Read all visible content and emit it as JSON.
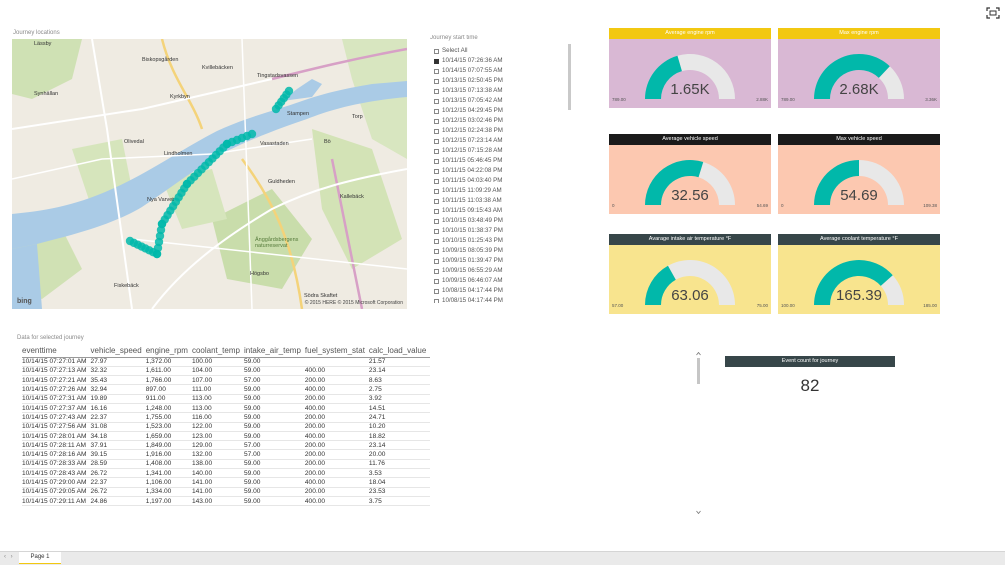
{
  "map": {
    "title": "Journey locations",
    "labels": [
      {
        "text": "Lässby",
        "name": "label-lassby"
      },
      {
        "text": "Biskopsgården",
        "name": "label-biskopsgarden"
      },
      {
        "text": "Kvillebäcken",
        "name": "label-kvillebacken"
      },
      {
        "text": "Tingstadsvassen",
        "name": "label-tingstadsvassen"
      },
      {
        "text": "Synhällan",
        "name": "label-synhallan"
      },
      {
        "text": "Kyrkbyn",
        "name": "label-kyrkbyn"
      },
      {
        "text": "Stampen",
        "name": "label-stampen"
      },
      {
        "text": "Torp",
        "name": "label-torp"
      },
      {
        "text": "Olivedal",
        "name": "label-olivedal"
      },
      {
        "text": "Vasastaden",
        "name": "label-vasastaden"
      },
      {
        "text": "Bö",
        "name": "label-bo"
      },
      {
        "text": "Lindholmen",
        "name": "label-lindholmen"
      },
      {
        "text": "Nya Varvet",
        "name": "label-nya-varvet"
      },
      {
        "text": "Guldheden",
        "name": "label-guldheden"
      },
      {
        "text": "Kallebäck",
        "name": "label-kalleback"
      },
      {
        "text": "Änggårdsbergens naturreservat",
        "name": "label-anggardsbergen"
      },
      {
        "text": "Högsbo",
        "name": "label-hogsbo"
      },
      {
        "text": "Fiskebäck",
        "name": "label-fiskeback"
      },
      {
        "text": "Södra Skaftet",
        "name": "label-sodra"
      }
    ],
    "bing": "bing",
    "copyright": "© 2015 HERE   © 2015 Microsoft Corporation"
  },
  "slicer": {
    "title": "Journey start time",
    "items": [
      {
        "label": "Select All",
        "checked": false
      },
      {
        "label": "10/14/15 07:26:36 AM",
        "checked": true
      },
      {
        "label": "10/14/15 07:07:55 AM",
        "checked": false
      },
      {
        "label": "10/13/15 02:50:45 PM",
        "checked": false
      },
      {
        "label": "10/13/15 07:13:38 AM",
        "checked": false
      },
      {
        "label": "10/13/15 07:05:42 AM",
        "checked": false
      },
      {
        "label": "10/12/15 04:29:45 PM",
        "checked": false
      },
      {
        "label": "10/12/15 03:02:46 PM",
        "checked": false
      },
      {
        "label": "10/12/15 02:24:38 PM",
        "checked": false
      },
      {
        "label": "10/12/15 07:23:14 AM",
        "checked": false
      },
      {
        "label": "10/12/15 07:15:28 AM",
        "checked": false
      },
      {
        "label": "10/11/15 05:46:45 PM",
        "checked": false
      },
      {
        "label": "10/11/15 04:22:08 PM",
        "checked": false
      },
      {
        "label": "10/11/15 04:03:40 PM",
        "checked": false
      },
      {
        "label": "10/11/15 11:09:29 AM",
        "checked": false
      },
      {
        "label": "10/11/15 11:03:38 AM",
        "checked": false
      },
      {
        "label": "10/11/15 09:15:43 AM",
        "checked": false
      },
      {
        "label": "10/10/15 03:48:49 PM",
        "checked": false
      },
      {
        "label": "10/10/15 01:38:37 PM",
        "checked": false
      },
      {
        "label": "10/10/15 01:25:43 PM",
        "checked": false
      },
      {
        "label": "10/09/15 08:05:39 PM",
        "checked": false
      },
      {
        "label": "10/09/15 01:39:47 PM",
        "checked": false
      },
      {
        "label": "10/09/15 06:55:29 AM",
        "checked": false
      },
      {
        "label": "10/09/15 06:46:07 AM",
        "checked": false
      },
      {
        "label": "10/08/15 04:17:44 PM",
        "checked": false
      },
      {
        "label": "10/08/15 04:17:44 PM",
        "checked": false
      }
    ]
  },
  "colors": {
    "teal": "#01b8aa",
    "gauge_track": "#e8e8e8",
    "head_yellow": "#f2c811",
    "head_black": "#1a1a1a",
    "head_dark": "#374649",
    "bg_lilac": "#d9b8d4",
    "bg_peach": "#fcc8b0",
    "bg_yellow": "#f8e48e"
  },
  "gauges": [
    {
      "title": "Average engine rpm",
      "value_label": "1.65K",
      "min": "789.00",
      "max": "2.88K",
      "fraction": 0.41,
      "head_color": "#f2c811",
      "bg_color": "#d9b8d4"
    },
    {
      "title": "Max engine rpm",
      "value_label": "2.68K",
      "min": "789.00",
      "max": "3.36K",
      "fraction": 0.74,
      "head_color": "#f2c811",
      "bg_color": "#d9b8d4"
    },
    {
      "title": "Average vehicle speed",
      "value_label": "32.56",
      "min": "0",
      "max": "54.69",
      "fraction": 0.595,
      "head_color": "#1a1a1a",
      "bg_color": "#fcc8b0"
    },
    {
      "title": "Max vehicle speed",
      "value_label": "54.69",
      "min": "0",
      "max": "109.38",
      "fraction": 0.5,
      "head_color": "#1a1a1a",
      "bg_color": "#fcc8b0"
    },
    {
      "title": "Avarage intake air temperature °F",
      "value_label": "63.06",
      "min": "57.00",
      "max": "75.00",
      "fraction": 0.337,
      "head_color": "#374649",
      "bg_color": "#f8e48e"
    },
    {
      "title": "Average coolant temperature °F",
      "value_label": "165.39",
      "min": "100.00",
      "max": "185.00",
      "fraction": 0.77,
      "head_color": "#374649",
      "bg_color": "#f8e48e"
    }
  ],
  "table": {
    "title": "Data for selected journey",
    "columns": [
      "eventtime",
      "vehicle_speed",
      "engine_rpm",
      "coolant_temp",
      "intake_air_temp",
      "fuel_system_stat",
      "calc_load_value"
    ],
    "rows": [
      [
        "10/14/15 07:27:01 AM",
        "27.97",
        "1,372.00",
        "100.00",
        "59.00",
        "",
        "21.57"
      ],
      [
        "10/14/15 07:27:13 AM",
        "32.32",
        "1,611.00",
        "104.00",
        "59.00",
        "400.00",
        "23.14"
      ],
      [
        "10/14/15 07:27:21 AM",
        "35.43",
        "1,766.00",
        "107.00",
        "57.00",
        "200.00",
        "8.63"
      ],
      [
        "10/14/15 07:27:26 AM",
        "32.94",
        "897.00",
        "111.00",
        "59.00",
        "400.00",
        "2.75"
      ],
      [
        "10/14/15 07:27:31 AM",
        "19.89",
        "911.00",
        "113.00",
        "59.00",
        "200.00",
        "3.92"
      ],
      [
        "10/14/15 07:27:37 AM",
        "16.16",
        "1,248.00",
        "113.00",
        "59.00",
        "400.00",
        "14.51"
      ],
      [
        "10/14/15 07:27:43 AM",
        "22.37",
        "1,755.00",
        "116.00",
        "59.00",
        "200.00",
        "24.71"
      ],
      [
        "10/14/15 07:27:56 AM",
        "31.08",
        "1,523.00",
        "122.00",
        "59.00",
        "200.00",
        "10.20"
      ],
      [
        "10/14/15 07:28:01 AM",
        "34.18",
        "1,659.00",
        "123.00",
        "59.00",
        "400.00",
        "18.82"
      ],
      [
        "10/14/15 07:28:11 AM",
        "37.91",
        "1,849.00",
        "129.00",
        "57.00",
        "200.00",
        "23.14"
      ],
      [
        "10/14/15 07:28:16 AM",
        "39.15",
        "1,916.00",
        "132.00",
        "57.00",
        "200.00",
        "20.00"
      ],
      [
        "10/14/15 07:28:33 AM",
        "28.59",
        "1,408.00",
        "138.00",
        "59.00",
        "200.00",
        "11.76"
      ],
      [
        "10/14/15 07:28:43 AM",
        "26.72",
        "1,341.00",
        "140.00",
        "59.00",
        "200.00",
        "3.53"
      ],
      [
        "10/14/15 07:29:00 AM",
        "22.37",
        "1,106.00",
        "141.00",
        "59.00",
        "400.00",
        "18.04"
      ],
      [
        "10/14/15 07:29:05 AM",
        "26.72",
        "1,334.00",
        "141.00",
        "59.00",
        "200.00",
        "23.53"
      ],
      [
        "10/14/15 07:29:11 AM",
        "24.86",
        "1,197.00",
        "143.00",
        "59.00",
        "400.00",
        "3.75"
      ]
    ]
  },
  "event_card": {
    "title": "Event count for journey",
    "value": "82"
  },
  "pages": {
    "tabs": [
      "Page 1"
    ],
    "nav_prev": "‹",
    "nav_next": "›"
  }
}
